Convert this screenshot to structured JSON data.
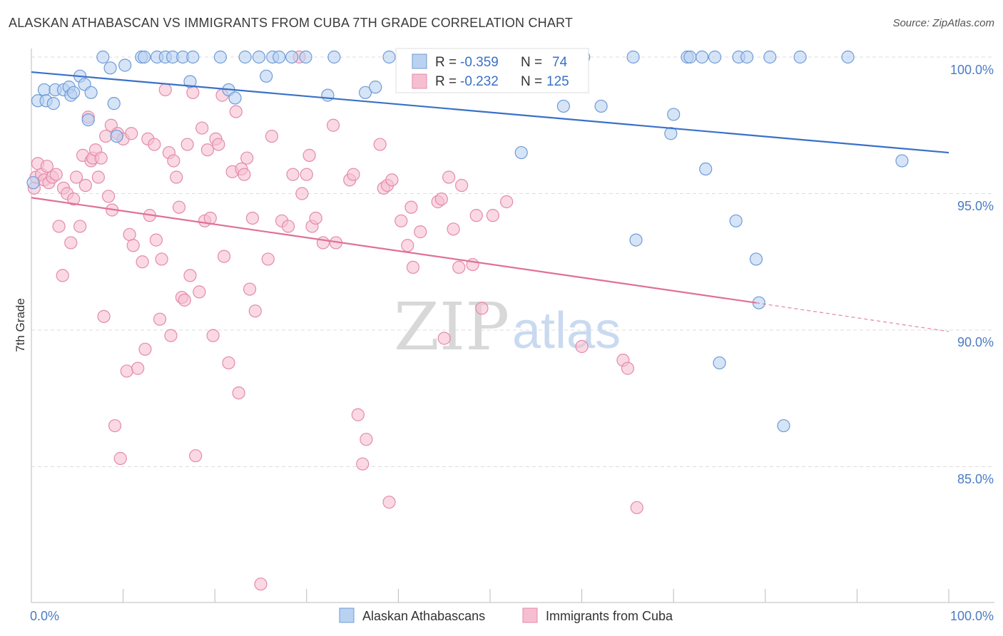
{
  "title": "ALASKAN ATHABASCAN VS IMMIGRANTS FROM CUBA 7TH GRADE CORRELATION CHART",
  "source": "Source: ZipAtlas.com",
  "watermark": {
    "zip": "ZIP",
    "atlas": "atlas"
  },
  "colors": {
    "blue": "#3a70c8",
    "blue_fill": "#b9d2f1",
    "pink": "#e07099",
    "pink_fill": "#f6bfd0",
    "tick": "#4a7cc4"
  },
  "stats": {
    "blue": {
      "r_label": "R =",
      "r_value": "-0.359",
      "n_label": "N =",
      "n_value": "74"
    },
    "pink": {
      "r_label": "R =",
      "r_value": "-0.232",
      "n_label": "N =",
      "n_value": "125"
    }
  },
  "legend": {
    "blue": "Alaskan Athabascans",
    "pink": "Immigrants from Cuba"
  },
  "chart_data": {
    "type": "scatter",
    "title": "ALASKAN ATHABASCAN VS IMMIGRANTS FROM CUBA 7TH GRADE CORRELATION CHART",
    "xlabel": "",
    "ylabel": "7th Grade",
    "x_tick_labels": [
      "0.0%",
      "100.0%"
    ],
    "y_tick_labels": [
      "100.0%",
      "95.0%",
      "90.0%",
      "85.0%"
    ],
    "y_ticks": [
      100,
      95,
      90,
      85
    ],
    "xlim": [
      0,
      100
    ],
    "ylim": [
      80.5,
      100.5
    ],
    "grid": "horizontal dashed",
    "legend_position": "bottom",
    "series": [
      {
        "name": "Alaskan Athabascans",
        "color": "#3a70c8",
        "trend": {
          "x": [
            0,
            100
          ],
          "y": [
            99.45,
            96.5
          ]
        },
        "points": [
          [
            0.2,
            95.4
          ],
          [
            0.7,
            98.4
          ],
          [
            1.4,
            98.8
          ],
          [
            1.6,
            98.4
          ],
          [
            2.4,
            98.3
          ],
          [
            2.6,
            98.8
          ],
          [
            3.5,
            98.8
          ],
          [
            4.1,
            98.9
          ],
          [
            4.3,
            98.6
          ],
          [
            4.6,
            98.7
          ],
          [
            5.3,
            99.3
          ],
          [
            5.8,
            99.0
          ],
          [
            6.2,
            97.7
          ],
          [
            6.5,
            98.7
          ],
          [
            7.8,
            100.0
          ],
          [
            8.6,
            99.6
          ],
          [
            9.0,
            98.3
          ],
          [
            9.3,
            97.1
          ],
          [
            10.2,
            99.7
          ],
          [
            12.0,
            100.0
          ],
          [
            12.3,
            100.0
          ],
          [
            13.7,
            100.0
          ],
          [
            14.6,
            100.0
          ],
          [
            15.4,
            100.0
          ],
          [
            16.5,
            100.0
          ],
          [
            17.3,
            99.1
          ],
          [
            17.6,
            100.0
          ],
          [
            20.6,
            100.0
          ],
          [
            21.5,
            98.8
          ],
          [
            22.2,
            98.5
          ],
          [
            23.3,
            100.0
          ],
          [
            24.8,
            100.0
          ],
          [
            25.6,
            99.3
          ],
          [
            26.3,
            100.0
          ],
          [
            27.0,
            100.0
          ],
          [
            28.4,
            100.0
          ],
          [
            29.9,
            100.0
          ],
          [
            32.3,
            98.6
          ],
          [
            33.0,
            100.0
          ],
          [
            36.4,
            98.7
          ],
          [
            37.5,
            98.9
          ],
          [
            39.0,
            100.0
          ],
          [
            41.2,
            100.0
          ],
          [
            42.1,
            100.0
          ],
          [
            44.4,
            100.0
          ],
          [
            45.0,
            100.0
          ],
          [
            48.5,
            100.0
          ],
          [
            53.0,
            100.0
          ],
          [
            53.2,
            100.0
          ],
          [
            53.4,
            96.5
          ],
          [
            57.6,
            100.0
          ],
          [
            58.0,
            98.2
          ],
          [
            60.2,
            100.0
          ],
          [
            62.1,
            98.2
          ],
          [
            65.6,
            100.0
          ],
          [
            65.9,
            93.3
          ],
          [
            69.7,
            97.2
          ],
          [
            70.0,
            97.9
          ],
          [
            71.5,
            100.0
          ],
          [
            71.8,
            100.0
          ],
          [
            73.1,
            100.0
          ],
          [
            73.5,
            95.9
          ],
          [
            74.5,
            100.0
          ],
          [
            75.0,
            88.8
          ],
          [
            76.8,
            94.0
          ],
          [
            77.1,
            100.0
          ],
          [
            78.0,
            100.0
          ],
          [
            79.0,
            92.6
          ],
          [
            79.3,
            91.0
          ],
          [
            80.5,
            100.0
          ],
          [
            82.0,
            86.5
          ],
          [
            83.8,
            100.0
          ],
          [
            89.0,
            100.0
          ],
          [
            94.9,
            96.2
          ]
        ]
      },
      {
        "name": "Immigrants from Cuba",
        "color": "#e07099",
        "trend": {
          "x": [
            0,
            79
          ],
          "y": [
            94.85,
            91.0
          ]
        },
        "trend_dashed": {
          "x": [
            79,
            100
          ],
          "y": [
            91.0,
            89.95
          ]
        },
        "points": [
          [
            0.3,
            95.2
          ],
          [
            0.5,
            95.6
          ],
          [
            0.7,
            96.1
          ],
          [
            1.1,
            95.7
          ],
          [
            1.4,
            95.5
          ],
          [
            1.7,
            96.0
          ],
          [
            1.9,
            95.4
          ],
          [
            2.3,
            95.6
          ],
          [
            2.7,
            95.7
          ],
          [
            3.0,
            93.8
          ],
          [
            3.4,
            92.0
          ],
          [
            3.5,
            95.2
          ],
          [
            3.9,
            95.0
          ],
          [
            4.3,
            93.2
          ],
          [
            4.6,
            94.8
          ],
          [
            4.9,
            95.6
          ],
          [
            5.3,
            93.8
          ],
          [
            5.6,
            96.4
          ],
          [
            5.9,
            95.3
          ],
          [
            6.2,
            97.8
          ],
          [
            6.5,
            96.2
          ],
          [
            6.7,
            96.3
          ],
          [
            7.0,
            96.6
          ],
          [
            7.3,
            95.6
          ],
          [
            7.6,
            96.3
          ],
          [
            7.9,
            90.5
          ],
          [
            8.1,
            97.1
          ],
          [
            8.4,
            94.9
          ],
          [
            8.7,
            97.5
          ],
          [
            8.8,
            94.4
          ],
          [
            9.1,
            86.5
          ],
          [
            9.4,
            97.2
          ],
          [
            9.7,
            85.3
          ],
          [
            10.0,
            97.0
          ],
          [
            10.4,
            88.5
          ],
          [
            10.7,
            93.5
          ],
          [
            10.9,
            97.2
          ],
          [
            11.1,
            93.1
          ],
          [
            11.6,
            88.6
          ],
          [
            12.1,
            92.5
          ],
          [
            12.4,
            89.3
          ],
          [
            12.7,
            97.0
          ],
          [
            12.9,
            94.2
          ],
          [
            13.4,
            96.8
          ],
          [
            13.6,
            93.3
          ],
          [
            14.0,
            90.4
          ],
          [
            14.2,
            92.6
          ],
          [
            14.6,
            98.8
          ],
          [
            15.0,
            96.5
          ],
          [
            15.2,
            89.8
          ],
          [
            15.5,
            96.2
          ],
          [
            15.8,
            95.6
          ],
          [
            16.1,
            94.5
          ],
          [
            16.4,
            91.2
          ],
          [
            16.7,
            91.1
          ],
          [
            17.0,
            96.8
          ],
          [
            17.3,
            92.0
          ],
          [
            17.6,
            98.7
          ],
          [
            17.9,
            85.4
          ],
          [
            18.3,
            91.4
          ],
          [
            18.6,
            97.4
          ],
          [
            18.9,
            94.0
          ],
          [
            19.2,
            96.6
          ],
          [
            19.5,
            94.1
          ],
          [
            19.8,
            89.8
          ],
          [
            20.1,
            97.0
          ],
          [
            20.4,
            96.8
          ],
          [
            20.8,
            98.6
          ],
          [
            21.0,
            92.7
          ],
          [
            21.5,
            88.8
          ],
          [
            21.9,
            95.8
          ],
          [
            22.3,
            98.0
          ],
          [
            22.6,
            87.7
          ],
          [
            22.9,
            95.9
          ],
          [
            23.2,
            95.7
          ],
          [
            23.5,
            96.3
          ],
          [
            23.8,
            91.5
          ],
          [
            24.1,
            94.1
          ],
          [
            24.4,
            90.7
          ],
          [
            25.0,
            80.7
          ],
          [
            25.8,
            92.6
          ],
          [
            26.2,
            97.1
          ],
          [
            27.3,
            94.0
          ],
          [
            28.0,
            93.8
          ],
          [
            28.5,
            95.7
          ],
          [
            29.2,
            100.0
          ],
          [
            29.5,
            95.0
          ],
          [
            30.0,
            95.7
          ],
          [
            30.3,
            96.4
          ],
          [
            30.6,
            93.8
          ],
          [
            31.0,
            94.1
          ],
          [
            31.8,
            93.2
          ],
          [
            32.9,
            97.5
          ],
          [
            33.2,
            93.2
          ],
          [
            34.7,
            95.5
          ],
          [
            35.1,
            95.7
          ],
          [
            35.6,
            86.9
          ],
          [
            36.1,
            85.1
          ],
          [
            36.5,
            86.0
          ],
          [
            38.0,
            96.8
          ],
          [
            38.4,
            95.2
          ],
          [
            38.8,
            95.3
          ],
          [
            39.0,
            83.7
          ],
          [
            39.3,
            95.5
          ],
          [
            40.3,
            94.0
          ],
          [
            41.0,
            93.1
          ],
          [
            41.4,
            94.5
          ],
          [
            41.6,
            92.3
          ],
          [
            42.4,
            93.6
          ],
          [
            44.3,
            94.7
          ],
          [
            44.7,
            94.8
          ],
          [
            45.0,
            89.7
          ],
          [
            45.5,
            95.6
          ],
          [
            46.0,
            93.7
          ],
          [
            46.6,
            92.3
          ],
          [
            46.9,
            95.3
          ],
          [
            48.1,
            92.4
          ],
          [
            48.5,
            94.2
          ],
          [
            49.1,
            90.8
          ],
          [
            50.3,
            94.2
          ],
          [
            51.8,
            94.7
          ],
          [
            60.0,
            89.4
          ],
          [
            64.5,
            88.9
          ],
          [
            65.0,
            88.6
          ],
          [
            66.0,
            83.5
          ]
        ]
      }
    ]
  }
}
